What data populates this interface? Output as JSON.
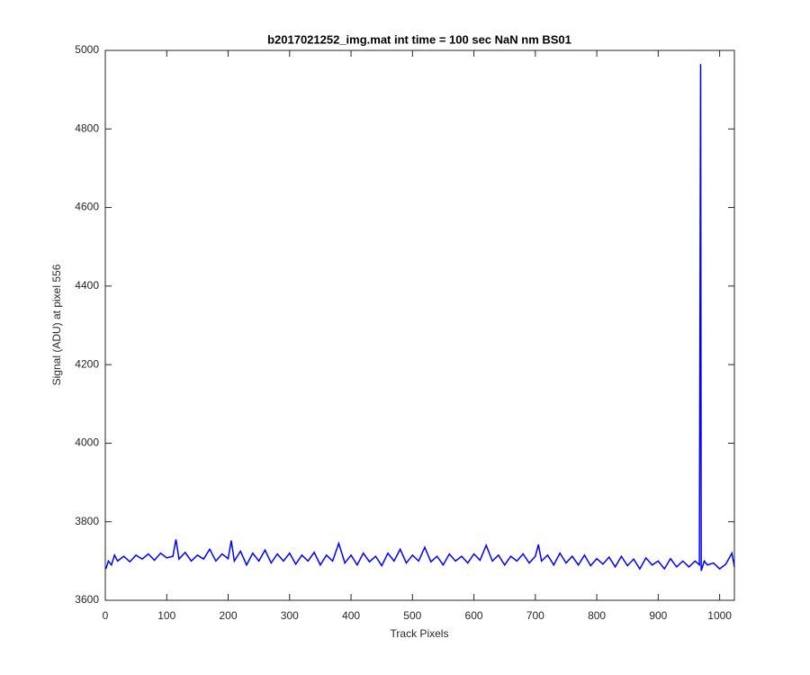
{
  "chart_data": {
    "type": "line",
    "title": "b2017021252_img.mat int time = 100 sec  NaN nm BS01",
    "x_label": "Track Pixels",
    "y_label": "Signal (ADU) at pixel 556",
    "xlim": [
      0,
      1024
    ],
    "ylim": [
      3600,
      5000
    ],
    "xticks": [
      0,
      100,
      200,
      300,
      400,
      500,
      600,
      700,
      800,
      900,
      1000
    ],
    "yticks": [
      3600,
      3800,
      4000,
      4200,
      4400,
      4600,
      4800,
      5000
    ],
    "grid": false,
    "x": [
      1,
      5,
      10,
      15,
      20,
      30,
      40,
      50,
      60,
      70,
      80,
      90,
      100,
      110,
      115,
      120,
      130,
      140,
      150,
      160,
      170,
      180,
      190,
      200,
      205,
      210,
      220,
      230,
      240,
      250,
      260,
      270,
      280,
      290,
      300,
      310,
      320,
      330,
      340,
      350,
      360,
      370,
      380,
      390,
      400,
      410,
      420,
      430,
      440,
      450,
      460,
      470,
      480,
      490,
      500,
      510,
      520,
      530,
      540,
      550,
      560,
      570,
      580,
      590,
      600,
      610,
      620,
      630,
      640,
      650,
      660,
      670,
      680,
      690,
      700,
      705,
      710,
      720,
      730,
      740,
      750,
      760,
      770,
      780,
      790,
      800,
      810,
      820,
      830,
      840,
      850,
      860,
      870,
      880,
      890,
      900,
      910,
      920,
      930,
      940,
      950,
      960,
      967,
      969,
      970,
      975,
      980,
      990,
      1000,
      1010,
      1020,
      1024
    ],
    "series": [
      {
        "color": "#0000ff",
        "values": [
          3680,
          3700,
          3690,
          3715,
          3700,
          3712,
          3698,
          3715,
          3705,
          3718,
          3702,
          3720,
          3708,
          3712,
          3755,
          3705,
          3722,
          3700,
          3715,
          3705,
          3730,
          3700,
          3718,
          3706,
          3752,
          3700,
          3725,
          3690,
          3720,
          3700,
          3728,
          3695,
          3718,
          3700,
          3720,
          3692,
          3715,
          3700,
          3722,
          3690,
          3715,
          3700,
          3745,
          3695,
          3715,
          3690,
          3720,
          3698,
          3712,
          3688,
          3720,
          3700,
          3730,
          3695,
          3715,
          3700,
          3735,
          3698,
          3712,
          3690,
          3718,
          3700,
          3712,
          3695,
          3718,
          3702,
          3740,
          3700,
          3715,
          3690,
          3712,
          3700,
          3718,
          3695,
          3712,
          3742,
          3700,
          3715,
          3690,
          3720,
          3695,
          3712,
          3690,
          3715,
          3688,
          3706,
          3692,
          3710,
          3685,
          3712,
          3688,
          3705,
          3680,
          3708,
          3690,
          3700,
          3680,
          3706,
          3685,
          3700,
          3685,
          3700,
          3690,
          4965,
          3675,
          3700,
          3690,
          3695,
          3680,
          3692,
          3720,
          3685
        ]
      }
    ]
  }
}
